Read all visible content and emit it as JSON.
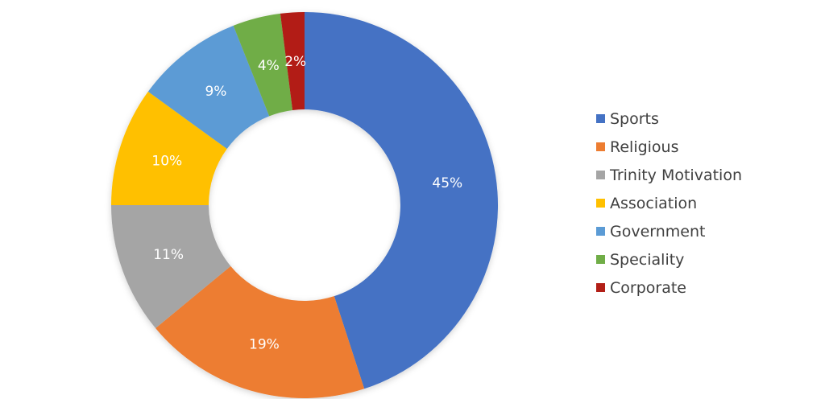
{
  "chart_data": {
    "type": "pie",
    "subtype": "donut",
    "title": "",
    "categories": [
      "Sports",
      "Religious",
      "Trinity Motivation",
      "Association",
      "Government",
      "Speciality",
      "Corporate"
    ],
    "values": [
      45,
      19,
      11,
      10,
      9,
      4,
      2
    ],
    "labels": [
      "45%",
      "19%",
      "11%",
      "10%",
      "9%",
      "4%",
      "2%"
    ],
    "colors": [
      "#4472C4",
      "#ED7D31",
      "#A5A5A5",
      "#FFC000",
      "#5B9BD5",
      "#70AD47",
      "#B21F17"
    ],
    "legend_position": "right"
  },
  "legend": {
    "items": [
      {
        "label": "Sports",
        "color": "#4472C4"
      },
      {
        "label": "Religious",
        "color": "#ED7D31"
      },
      {
        "label": "Trinity Motivation",
        "color": "#A5A5A5"
      },
      {
        "label": "Association",
        "color": "#FFC000"
      },
      {
        "label": "Government",
        "color": "#5B9BD5"
      },
      {
        "label": "Speciality",
        "color": "#70AD47"
      },
      {
        "label": "Corporate",
        "color": "#B21F17"
      }
    ]
  }
}
